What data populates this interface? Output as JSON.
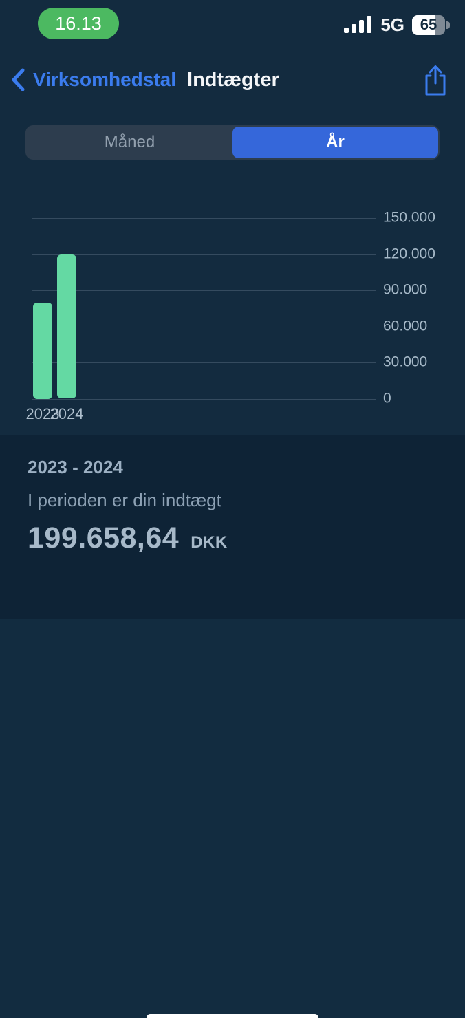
{
  "status_bar": {
    "time": "16.13",
    "network": "5G",
    "battery_percent": "65"
  },
  "nav": {
    "back_label": "Virksomhedstal",
    "title": "Indtægter",
    "share_icon": "share-up-arrow-icon",
    "back_icon": "chevron-left-icon"
  },
  "segmented_control": {
    "options": [
      {
        "label": "Måned",
        "selected": false
      },
      {
        "label": "År",
        "selected": true
      }
    ]
  },
  "chart_data": {
    "type": "bar",
    "categories": [
      "2023",
      "2024"
    ],
    "values": [
      80000,
      119658.64
    ],
    "y_ticks": [
      "150.000",
      "120.000",
      "90.000",
      "60.000",
      "30.000",
      "0"
    ],
    "y_tick_values": [
      150000,
      120000,
      90000,
      60000,
      30000,
      0
    ],
    "ylim": [
      0,
      150000
    ],
    "grid": true,
    "y_axis_side": "right",
    "legend": false,
    "title": "",
    "xlabel": "",
    "ylabel": "",
    "bar_color": "#64d9a3"
  },
  "summary": {
    "period": "2023 - 2024",
    "description": "I perioden er din indtægt",
    "amount": "199.658,64",
    "currency": "DKK"
  },
  "colors": {
    "accent_blue": "#3b7cee",
    "segment_selected_blue": "#3567da",
    "call_pill_green": "#4cb961",
    "bar_green": "#64d9a3",
    "top_background": "#132b3f",
    "panel_background": "#0e2336",
    "bottom_background": "#122c40",
    "gridline": "#354b5f",
    "axis_label": "#a6b9c8"
  }
}
